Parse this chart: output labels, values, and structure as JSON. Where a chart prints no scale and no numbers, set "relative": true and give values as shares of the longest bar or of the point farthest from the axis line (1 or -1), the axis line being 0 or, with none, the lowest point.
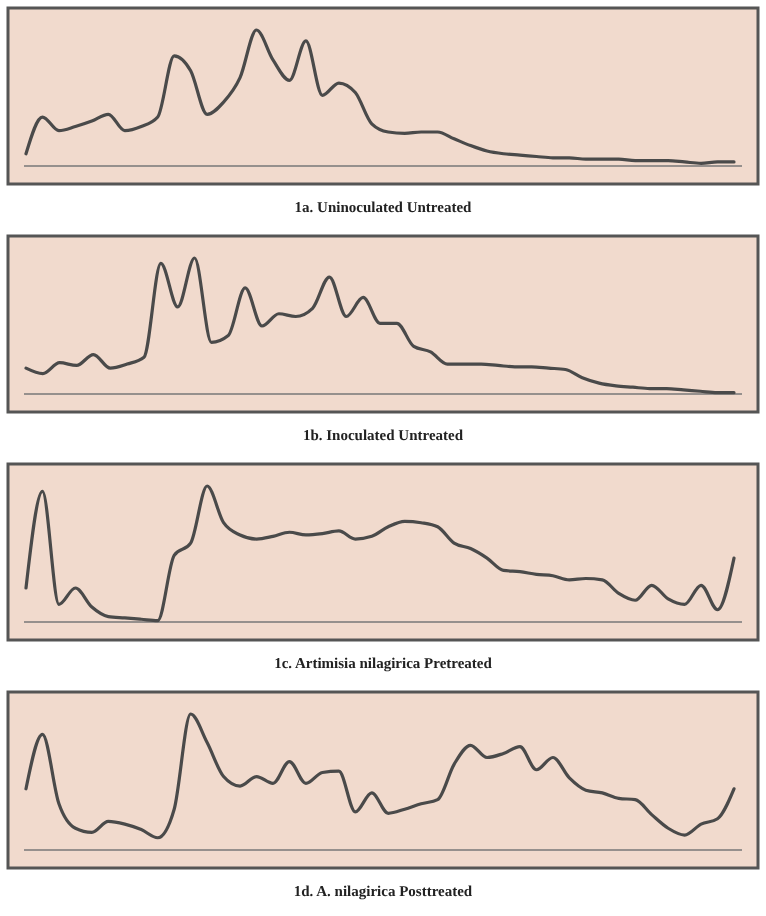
{
  "chart_data": [
    {
      "type": "line",
      "title": "1a. Uninoculated Untreated",
      "relative": true,
      "color": "#4a4a4a",
      "categories": [
        null,
        null,
        null,
        null,
        null,
        null,
        null,
        null,
        null,
        null,
        null,
        null,
        null,
        null,
        null,
        null,
        null,
        null,
        null,
        null,
        null,
        null,
        null,
        null,
        null,
        null,
        null,
        null,
        null,
        null,
        null,
        null,
        null,
        null,
        null,
        null,
        null,
        null,
        null,
        null,
        null,
        null,
        null,
        null
      ],
      "values": [
        0.09,
        0.36,
        0.26,
        0.29,
        0.33,
        0.38,
        0.26,
        0.29,
        0.36,
        0.81,
        0.7,
        0.38,
        0.47,
        0.65,
        1,
        0.78,
        0.63,
        0.92,
        0.52,
        0.61,
        0.54,
        0.31,
        0.25,
        0.24,
        0.25,
        0.25,
        0.2,
        0.15,
        0.11,
        0.09,
        0.08,
        0.07,
        0.06,
        0.06,
        0.05,
        0.05,
        0.05,
        0.04,
        0.04,
        0.04,
        0.03,
        0.02,
        0.03,
        0.03
      ]
    },
    {
      "type": "line",
      "title": "1b. Inoculated Untreated",
      "relative": true,
      "color": "#4a4a4a",
      "categories": [
        null,
        null,
        null,
        null,
        null,
        null,
        null,
        null,
        null,
        null,
        null,
        null,
        null,
        null,
        null,
        null,
        null,
        null,
        null,
        null,
        null,
        null,
        null,
        null,
        null,
        null,
        null,
        null,
        null,
        null,
        null,
        null,
        null,
        null,
        null,
        null,
        null,
        null,
        null,
        null,
        null,
        null,
        null
      ],
      "values": [
        0.19,
        0.15,
        0.23,
        0.21,
        0.29,
        0.19,
        0.22,
        0.27,
        0.96,
        0.64,
        1,
        0.38,
        0.43,
        0.78,
        0.5,
        0.59,
        0.57,
        0.63,
        0.86,
        0.57,
        0.71,
        0.52,
        0.52,
        0.35,
        0.31,
        0.22,
        0.22,
        0.22,
        0.21,
        0.2,
        0.2,
        0.19,
        0.18,
        0.12,
        0.08,
        0.06,
        0.05,
        0.04,
        0.04,
        0.03,
        0.02,
        0.01,
        0.01
      ]
    },
    {
      "type": "line",
      "title": "1c. Artimisia nilagirica Pretreated",
      "relative": true,
      "color": "#4a4a4a",
      "categories": [
        null,
        null,
        null,
        null,
        null,
        null,
        null,
        null,
        null,
        null,
        null,
        null,
        null,
        null,
        null,
        null,
        null,
        null,
        null,
        null,
        null,
        null,
        null,
        null,
        null,
        null,
        null,
        null,
        null,
        null,
        null,
        null,
        null,
        null,
        null,
        null,
        null,
        null,
        null,
        null,
        null,
        null,
        null,
        null
      ],
      "values": [
        0.25,
        0.96,
        0.13,
        0.25,
        0.11,
        0.04,
        0.03,
        0.02,
        0.01,
        0.49,
        0.58,
        1,
        0.73,
        0.64,
        0.61,
        0.63,
        0.66,
        0.64,
        0.65,
        0.67,
        0.61,
        0.63,
        0.7,
        0.74,
        0.73,
        0.7,
        0.58,
        0.54,
        0.47,
        0.38,
        0.37,
        0.35,
        0.34,
        0.31,
        0.32,
        0.31,
        0.21,
        0.16,
        0.27,
        0.17,
        0.13,
        0.27,
        0.09,
        0.47
      ]
    },
    {
      "type": "line",
      "title": "1d. A. nilagirica Posttreated",
      "relative": true,
      "color": "#4a4a4a",
      "categories": [
        null,
        null,
        null,
        null,
        null,
        null,
        null,
        null,
        null,
        null,
        null,
        null,
        null,
        null,
        null,
        null,
        null,
        null,
        null,
        null,
        null,
        null,
        null,
        null,
        null,
        null,
        null,
        null,
        null,
        null,
        null,
        null,
        null,
        null,
        null,
        null,
        null,
        null,
        null,
        null,
        null,
        null,
        null,
        null
      ],
      "values": [
        0.45,
        0.85,
        0.34,
        0.16,
        0.13,
        0.21,
        0.19,
        0.15,
        0.09,
        0.3,
        1,
        0.79,
        0.54,
        0.47,
        0.54,
        0.49,
        0.65,
        0.49,
        0.57,
        0.58,
        0.28,
        0.42,
        0.27,
        0.3,
        0.34,
        0.37,
        0.63,
        0.77,
        0.68,
        0.71,
        0.76,
        0.59,
        0.68,
        0.53,
        0.44,
        0.42,
        0.38,
        0.37,
        0.26,
        0.16,
        0.11,
        0.19,
        0.23,
        0.45
      ]
    }
  ]
}
